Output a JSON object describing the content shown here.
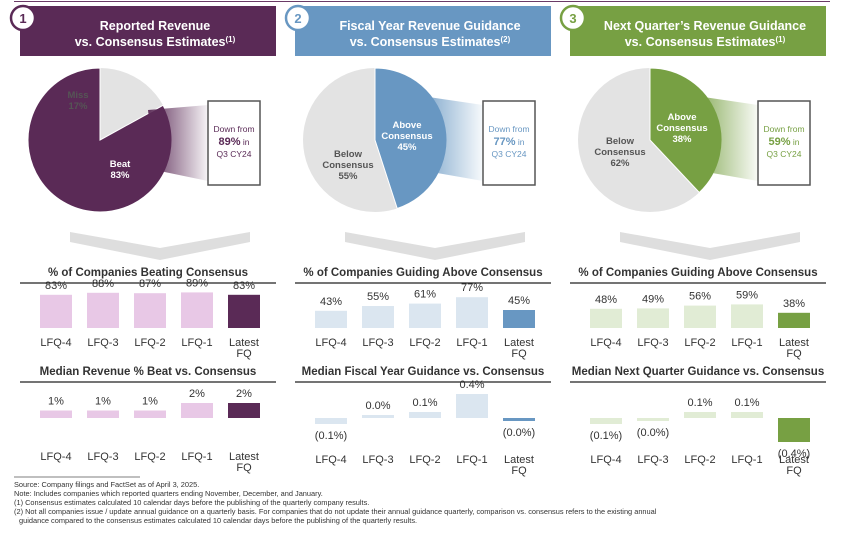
{
  "colors": {
    "purple": "#5a2a56",
    "purple_light": "#e8c8e6",
    "blue": "#6897c2",
    "blue_light": "#dbe6f0",
    "green": "#77a043",
    "green_light": "#e1ecd5",
    "pie_gray": "#e3e3e3",
    "chevron": "#dedede",
    "callout_border": "#555555"
  },
  "panels": [
    {
      "number": "1",
      "title_line1": "Reported Revenue",
      "title_line2": "vs. Consensus Estimates",
      "title_sup": "(1)",
      "color_key": "purple",
      "light_key": "purple_light",
      "pie": {
        "slices": [
          {
            "label": "Beat",
            "value": 83,
            "value_label": "83%",
            "highlight": true
          },
          {
            "label": "Miss",
            "value": 17,
            "value_label": "17%",
            "highlight": false
          }
        ]
      },
      "callout": {
        "line1": "Down from",
        "value": "89%",
        "suffix": " in",
        "line3": "Q3 CY24"
      },
      "section1_title": "% of Companies Beating Consensus",
      "section2_title": "Median Revenue % Beat vs. Consensus"
    },
    {
      "number": "2",
      "title_line1": "Fiscal Year Revenue Guidance",
      "title_line2": "vs. Consensus Estimates",
      "title_sup": "(2)",
      "color_key": "blue",
      "light_key": "blue_light",
      "pie": {
        "slices": [
          {
            "label": "Above Consensus",
            "value": 45,
            "value_label": "45%",
            "highlight": true
          },
          {
            "label": "Below Consensus",
            "value": 55,
            "value_label": "55%",
            "highlight": false
          }
        ]
      },
      "callout": {
        "line1": "Down from",
        "value": "77%",
        "suffix": " in",
        "line3": "Q3 CY24"
      },
      "section1_title": "% of Companies Guiding Above Consensus",
      "section2_title": "Median Fiscal Year Guidance vs. Consensus"
    },
    {
      "number": "3",
      "title_line1": "Next Quarter’s Revenue Guidance",
      "title_line2": "vs. Consensus Estimates",
      "title_sup": "(1)",
      "color_key": "green",
      "light_key": "green_light",
      "pie": {
        "slices": [
          {
            "label": "Above Consensus",
            "value": 38,
            "value_label": "38%",
            "highlight": true
          },
          {
            "label": "Below Consensus",
            "value": 62,
            "value_label": "62%",
            "highlight": false
          }
        ]
      },
      "callout": {
        "line1": "Down from",
        "value": "59%",
        "suffix": " in",
        "line3": "Q3 CY24"
      },
      "section1_title": "% of Companies Guiding Above Consensus",
      "section2_title": "Median Next Quarter Guidance vs. Consensus"
    }
  ],
  "chart_data": [
    {
      "type": "bar",
      "title": "% of Companies Beating Consensus",
      "categories": [
        "LFQ-4",
        "LFQ-3",
        "LFQ-2",
        "LFQ-1",
        "Latest FQ"
      ],
      "values": [
        83,
        88,
        87,
        89,
        83
      ],
      "labels": [
        "83%",
        "88%",
        "87%",
        "89%",
        "83%"
      ]
    },
    {
      "type": "bar",
      "title": "% of Companies Guiding Above Consensus",
      "categories": [
        "LFQ-4",
        "LFQ-3",
        "LFQ-2",
        "LFQ-1",
        "Latest FQ"
      ],
      "values": [
        43,
        55,
        61,
        77,
        45
      ],
      "labels": [
        "43%",
        "55%",
        "61%",
        "77%",
        "45%"
      ]
    },
    {
      "type": "bar",
      "title": "% of Companies Guiding Above Consensus",
      "categories": [
        "LFQ-4",
        "LFQ-3",
        "LFQ-2",
        "LFQ-1",
        "Latest FQ"
      ],
      "values": [
        48,
        49,
        56,
        59,
        38
      ],
      "labels": [
        "48%",
        "49%",
        "56%",
        "59%",
        "38%"
      ]
    },
    {
      "type": "bar",
      "title": "Median Revenue % Beat vs. Consensus",
      "categories": [
        "LFQ-4",
        "LFQ-3",
        "LFQ-2",
        "LFQ-1",
        "Latest FQ"
      ],
      "values": [
        1,
        1,
        1,
        2,
        2
      ],
      "labels": [
        "1%",
        "1%",
        "1%",
        "2%",
        "2%"
      ]
    },
    {
      "type": "bar",
      "title": "Median Fiscal Year Guidance vs. Consensus",
      "categories": [
        "LFQ-4",
        "LFQ-3",
        "LFQ-2",
        "LFQ-1",
        "Latest FQ"
      ],
      "values": [
        -0.1,
        0.0,
        0.1,
        0.4,
        -0.0
      ],
      "labels": [
        "(0.1%)",
        "0.0%",
        "0.1%",
        "0.4%",
        "(0.0%)"
      ]
    },
    {
      "type": "bar",
      "title": "Median Next Quarter Guidance vs. Consensus",
      "categories": [
        "LFQ-4",
        "LFQ-3",
        "LFQ-2",
        "LFQ-1",
        "Latest FQ"
      ],
      "values": [
        -0.1,
        -0.0,
        0.1,
        0.1,
        -0.4
      ],
      "labels": [
        "(0.1%)",
        "(0.0%)",
        "0.1%",
        "0.1%",
        "(0.4%)"
      ]
    }
  ],
  "footnotes": [
    "Source: Company filings and FactSet as of April 3, 2025.",
    "Note: Includes companies which reported quarters ending November, December, and January.",
    "(1)    Consensus estimates calculated 10 calendar days before the publishing of the quarterly company results.",
    "(2)    Not all companies issue / update annual guidance on a quarterly basis. For companies that do not update their annual guidance quarterly, comparison vs. consensus refers to the existing annual",
    "guidance compared to the consensus estimates calculated 10 calendar days before the publishing of the quarterly results."
  ]
}
